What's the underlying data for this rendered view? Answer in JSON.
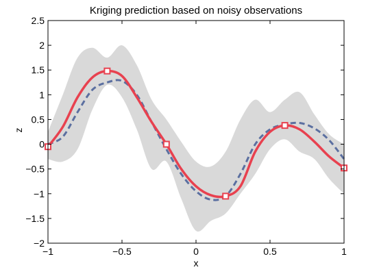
{
  "chart_data": {
    "type": "line",
    "title": "Kriging prediction based on noisy observations",
    "xlabel": "x",
    "ylabel": "z",
    "xlim": [
      -1,
      1
    ],
    "ylim": [
      -2,
      2.5
    ],
    "xticks": [
      "−1",
      "−0.5",
      "0",
      "0.5",
      "1"
    ],
    "yticks": [
      "−2",
      "−1.5",
      "−1",
      "−0.5",
      "0",
      "0.5",
      "1",
      "1.5",
      "2",
      "2.5"
    ],
    "grid": false,
    "legend": "none",
    "colors": {
      "band": "#d9d9d9",
      "prediction": "#e8414f",
      "truth": "#5b6fa0",
      "observation": "#e8414f"
    },
    "series": [
      {
        "role": "band",
        "x": [
          -1,
          -0.9,
          -0.8,
          -0.7,
          -0.6,
          -0.5,
          -0.4,
          -0.3,
          -0.2,
          -0.1,
          0,
          0.1,
          0.2,
          0.3,
          0.4,
          0.5,
          0.6,
          0.7,
          0.8,
          0.9,
          1
        ],
        "upper": [
          0.25,
          1.0,
          1.75,
          1.95,
          1.75,
          2.0,
          1.6,
          0.9,
          0.5,
          0.05,
          -0.35,
          -0.45,
          -0.15,
          0.5,
          0.9,
          0.65,
          0.9,
          1.05,
          0.6,
          0.2,
          0.0
        ],
        "lower": [
          -0.3,
          -0.35,
          -0.1,
          0.7,
          1.2,
          0.95,
          0.3,
          -0.5,
          -0.35,
          -1.1,
          -1.75,
          -1.55,
          -1.4,
          -1.0,
          -0.6,
          -0.1,
          0.1,
          -0.15,
          -0.3,
          -0.7,
          -1.0
        ]
      },
      {
        "role": "truth",
        "style": "dashed",
        "x": [
          -1,
          -0.9,
          -0.8,
          -0.7,
          -0.6,
          -0.5,
          -0.4,
          -0.3,
          -0.2,
          -0.1,
          0,
          0.1,
          0.2,
          0.3,
          0.4,
          0.5,
          0.6,
          0.7,
          0.8,
          0.9,
          1
        ],
        "y": [
          0.0,
          0.15,
          0.65,
          1.1,
          1.25,
          1.28,
          1.0,
          0.45,
          -0.1,
          -0.6,
          -0.95,
          -1.12,
          -1.05,
          -0.6,
          0.0,
          0.3,
          0.4,
          0.43,
          0.32,
          0.08,
          -0.3
        ]
      },
      {
        "role": "prediction",
        "style": "solid",
        "x": [
          -1,
          -0.9,
          -0.8,
          -0.7,
          -0.6,
          -0.5,
          -0.4,
          -0.3,
          -0.2,
          -0.1,
          0,
          0.1,
          0.2,
          0.3,
          0.4,
          0.5,
          0.6,
          0.7,
          0.8,
          0.9,
          1
        ],
        "y": [
          -0.05,
          0.35,
          0.95,
          1.35,
          1.48,
          1.38,
          0.95,
          0.45,
          0.0,
          -0.5,
          -0.85,
          -1.03,
          -1.05,
          -0.85,
          -0.15,
          0.25,
          0.38,
          0.3,
          0.05,
          -0.25,
          -0.48
        ]
      },
      {
        "role": "observation",
        "marker": "square",
        "x": [
          -1,
          -0.6,
          -0.2,
          0.2,
          0.6,
          1
        ],
        "y": [
          -0.05,
          1.48,
          0.0,
          -1.05,
          0.38,
          -0.48
        ]
      }
    ]
  }
}
